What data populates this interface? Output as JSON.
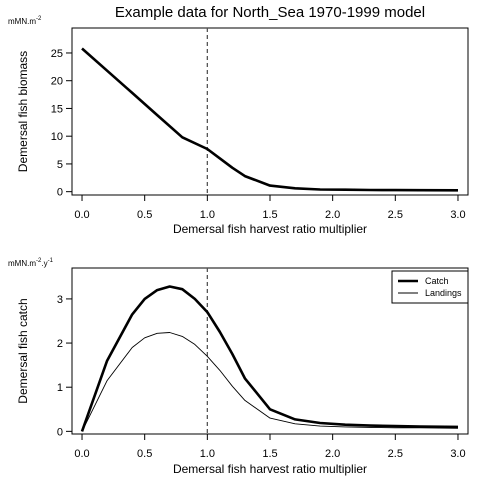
{
  "page_title": "Example data for  North_Sea   1970-1999  model",
  "chart_data": [
    {
      "type": "line",
      "xlabel": "Demersal fish harvest ratio multiplier",
      "ylabel": "Demersal fish biomass",
      "unit_label": "mMN.m",
      "unit_exp": "-2",
      "unit_suffix": "",
      "xlim": [
        -0.08,
        3.08
      ],
      "ylim": [
        -0.6,
        29.5
      ],
      "xticks": [
        0,
        0.5,
        1,
        1.5,
        2,
        2.5,
        3
      ],
      "xtick_labels": [
        "0.0",
        "0.5",
        "1.0",
        "1.5",
        "2.0",
        "2.5",
        "3.0"
      ],
      "yticks": [
        0,
        5,
        10,
        15,
        20,
        25
      ],
      "ytick_labels": [
        "0",
        "5",
        "10",
        "15",
        "20",
        "25"
      ],
      "reference_line_x": 1.0,
      "series": [
        {
          "style": "thick",
          "x": [
            0,
            0.2,
            0.4,
            0.6,
            0.8,
            1.0,
            1.1,
            1.2,
            1.3,
            1.5,
            1.7,
            1.9,
            2.1,
            2.3,
            2.5,
            2.7,
            3.0
          ],
          "y": [
            25.8,
            21.8,
            17.8,
            13.8,
            9.8,
            7.7,
            6.0,
            4.3,
            2.8,
            1.1,
            0.6,
            0.4,
            0.35,
            0.3,
            0.28,
            0.26,
            0.25
          ]
        }
      ]
    },
    {
      "type": "line",
      "xlabel": "Demersal fish harvest ratio multiplier",
      "ylabel": "Demersal fish catch",
      "unit_label": "mMN.m",
      "unit_exp": "-2",
      "unit_suffix": ".y",
      "unit_exp2": "-1",
      "xlim": [
        -0.08,
        3.08
      ],
      "ylim": [
        -0.06,
        3.7
      ],
      "xticks": [
        0,
        0.5,
        1,
        1.5,
        2,
        2.5,
        3
      ],
      "xtick_labels": [
        "0.0",
        "0.5",
        "1.0",
        "1.5",
        "2.0",
        "2.5",
        "3.0"
      ],
      "yticks": [
        0,
        1,
        2,
        3
      ],
      "ytick_labels": [
        "0",
        "1",
        "2",
        "3"
      ],
      "reference_line_x": 1.0,
      "legend_position": "top-right",
      "series": [
        {
          "name": "Catch",
          "style": "thick",
          "x": [
            0,
            0.2,
            0.4,
            0.5,
            0.6,
            0.7,
            0.8,
            0.9,
            1.0,
            1.1,
            1.2,
            1.3,
            1.5,
            1.7,
            1.9,
            2.1,
            2.3,
            2.5,
            2.7,
            3.0
          ],
          "y": [
            0,
            1.6,
            2.65,
            3.0,
            3.2,
            3.28,
            3.22,
            3.0,
            2.7,
            2.25,
            1.75,
            1.2,
            0.5,
            0.27,
            0.19,
            0.15,
            0.13,
            0.12,
            0.11,
            0.1
          ]
        },
        {
          "name": "Landings",
          "style": "thin",
          "x": [
            0,
            0.2,
            0.4,
            0.5,
            0.6,
            0.7,
            0.8,
            0.9,
            1.0,
            1.1,
            1.2,
            1.3,
            1.5,
            1.7,
            1.9,
            2.1,
            2.3,
            2.5,
            2.7,
            3.0
          ],
          "y": [
            0,
            1.15,
            1.9,
            2.12,
            2.22,
            2.24,
            2.15,
            1.97,
            1.7,
            1.38,
            1.02,
            0.7,
            0.3,
            0.17,
            0.12,
            0.1,
            0.09,
            0.08,
            0.08,
            0.07
          ]
        }
      ]
    }
  ]
}
